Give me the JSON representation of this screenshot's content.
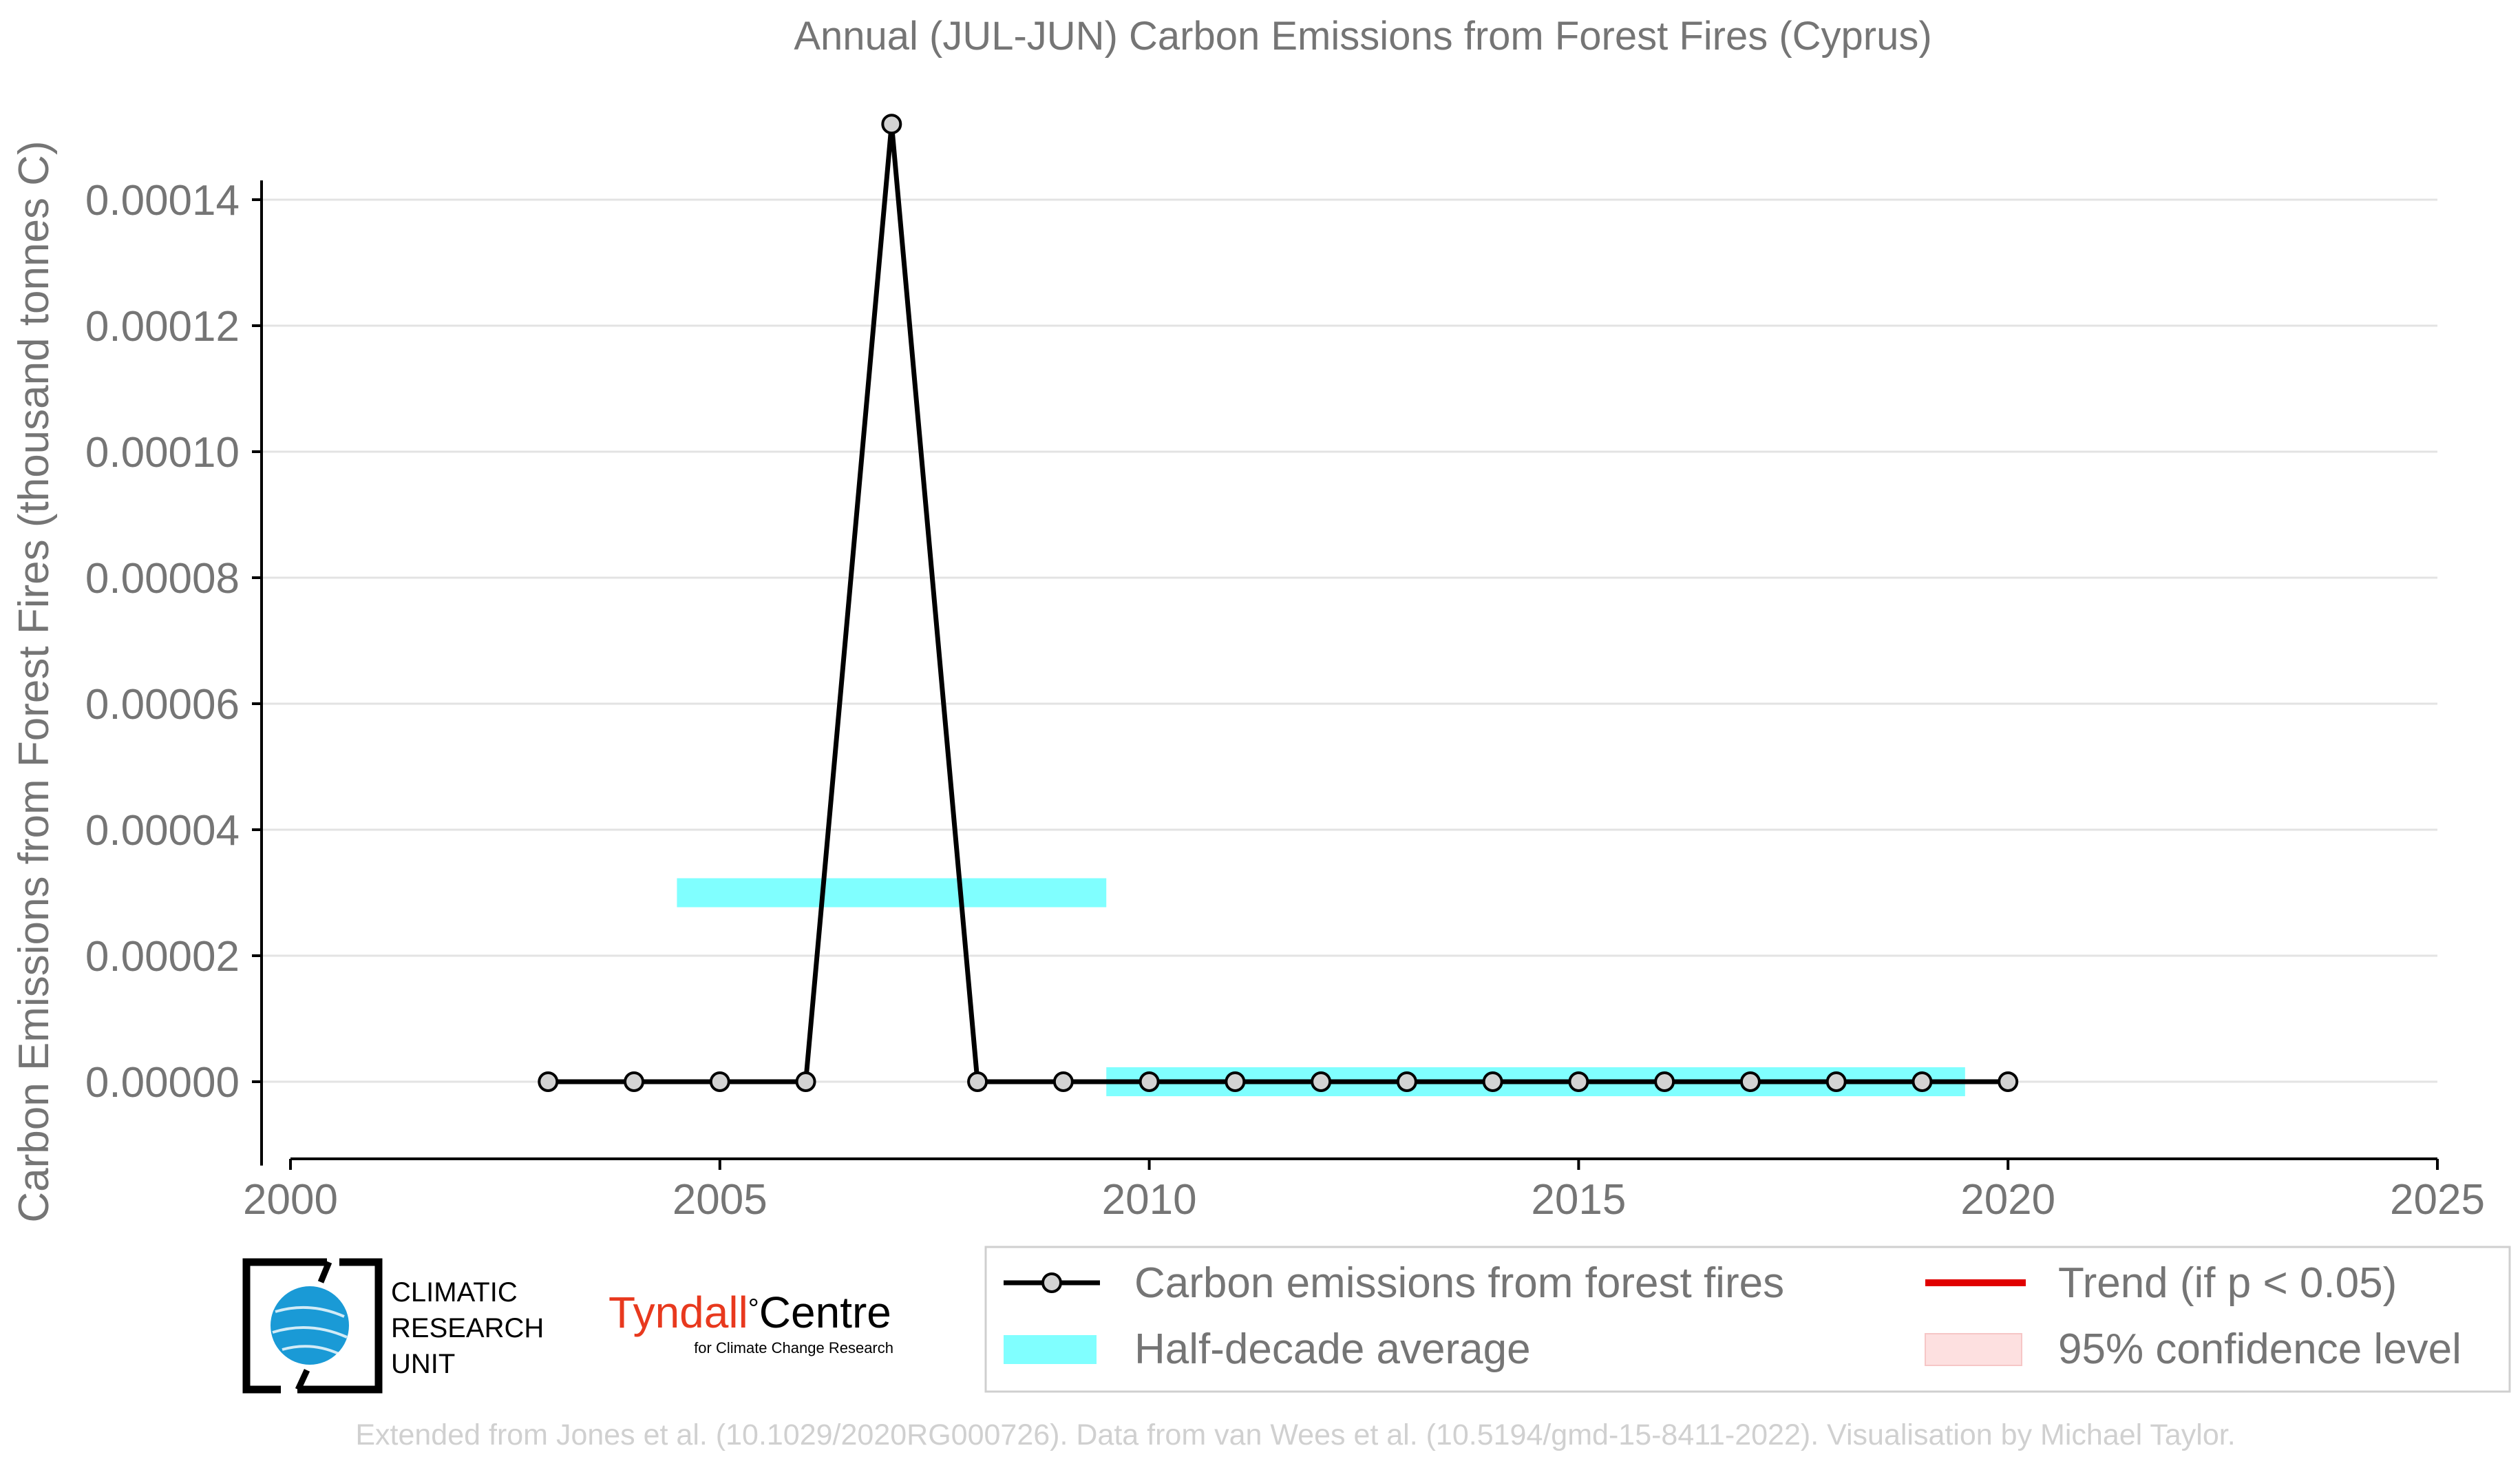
{
  "chart_data": {
    "type": "line",
    "title": "Annual (JUL-JUN) Carbon Emissions from Forest Fires (Cyprus)",
    "xlabel": "",
    "ylabel": "Carbon Emissions from Forest Fires (thousand tonnes C)",
    "xlim": [
      2000,
      2025
    ],
    "ylim": [
      -1.2e-05,
      0.000155
    ],
    "xticks": [
      2000,
      2005,
      2010,
      2015,
      2020,
      2025
    ],
    "xtick_labels": [
      "2000",
      "2005",
      "2010",
      "2015",
      "2020",
      "2025"
    ],
    "yticks": [
      0,
      2e-05,
      4e-05,
      6e-05,
      8e-05,
      0.0001,
      0.00012,
      0.00014
    ],
    "ytick_labels": [
      "0.00000",
      "0.00002",
      "0.00004",
      "0.00006",
      "0.00008",
      "0.00010",
      "0.00012",
      "0.00014"
    ],
    "grid": "horizontal",
    "series": [
      {
        "name": "Carbon emissions from forest fires",
        "color": "#000000",
        "x": [
          2003,
          2004,
          2005,
          2006,
          2007,
          2008,
          2009,
          2010,
          2011,
          2012,
          2013,
          2014,
          2015,
          2016,
          2017,
          2018,
          2019,
          2020
        ],
        "y": [
          0,
          0,
          0,
          0,
          0.000152,
          0,
          0,
          0,
          0,
          0,
          0,
          0,
          0,
          0,
          0,
          0,
          0,
          0
        ]
      }
    ],
    "half_decade_average": {
      "name": "Half-decade average",
      "color": "#80ffff",
      "segments": [
        {
          "x_start": 2004.5,
          "x_end": 2009.5,
          "value": 3e-05
        },
        {
          "x_start": 2009.5,
          "x_end": 2019.5,
          "value": 0
        }
      ]
    },
    "legend": {
      "placement": "bottom-right",
      "items": [
        {
          "label": "Carbon emissions from forest fires",
          "kind": "line-marker",
          "color": "#000000"
        },
        {
          "label": "Trend (if p < 0.05)",
          "kind": "line",
          "color": "#e00000"
        },
        {
          "label": "Half-decade average",
          "kind": "patch",
          "color": "#80ffff"
        },
        {
          "label": "95% confidence level",
          "kind": "patch",
          "color": "#fde0e0"
        }
      ]
    }
  },
  "logos": {
    "cru_lines": [
      "CLIMATIC",
      "RESEARCH",
      "UNIT"
    ],
    "tyndall_name": "Tyndall",
    "tyndall_degree": "°",
    "tyndall_centre": "Centre",
    "tyndall_sub": "for Climate Change Research"
  },
  "credit": "Extended from Jones et al. (10.1029/2020RG000726). Data from van Wees et al. (10.5194/gmd-15-8411-2022). Visualisation by Michael Taylor.",
  "colors": {
    "text": "#757575",
    "line": "#000000",
    "marker_fill": "#d3d3d3",
    "band": "#80ffff",
    "trend": "#e00000",
    "ci": "#fde0e0",
    "cru_globe": "#1a9ad6",
    "tyndall_red": "#e8391e"
  }
}
